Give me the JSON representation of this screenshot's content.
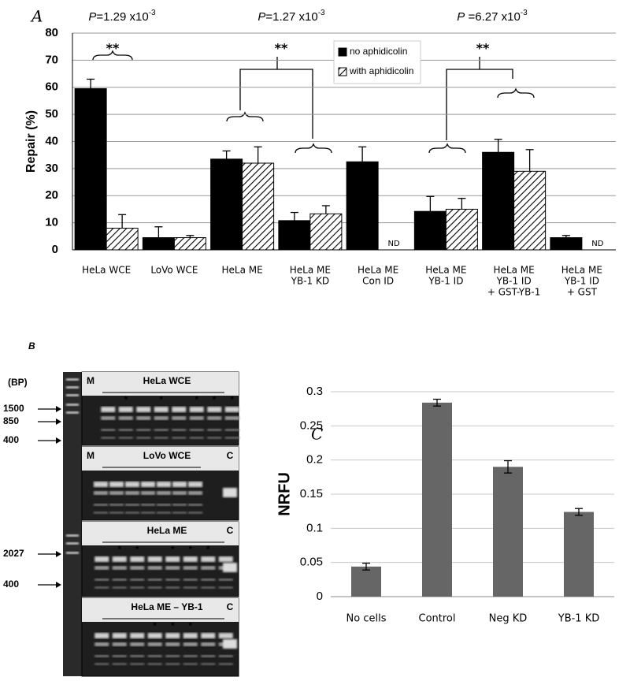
{
  "chart_data": [
    {
      "type": "bar",
      "panel_label": "A",
      "y_label": "Repair (%)",
      "categories": [
        [
          "HeLa WCE"
        ],
        [
          "LoVo WCE"
        ],
        [
          "HeLa ME"
        ],
        [
          "HeLa ME",
          "YB-1 KD"
        ],
        [
          "HeLa ME",
          "Con ID"
        ],
        [
          "HeLa ME",
          "YB-1 ID"
        ],
        [
          "HeLa ME",
          "YB-1 ID",
          "+ GST-YB-1"
        ],
        [
          "HeLa ME",
          "YB-1 ID",
          "+ GST"
        ]
      ],
      "series": [
        {
          "name": "no aphidicolin",
          "color": "#000000",
          "values": [
            59.5,
            4.5,
            33.5,
            10.8,
            32.5,
            14.2,
            36,
            4.5
          ],
          "errors": [
            3.5,
            4,
            3,
            3,
            5.5,
            5.5,
            4.8,
            0.8
          ]
        },
        {
          "name": "with aphidicolin",
          "color": "#ffffff",
          "pattern": "hatch",
          "values": [
            8,
            4.5,
            32,
            13.3,
            null,
            15,
            29,
            null
          ],
          "errors": [
            5,
            0.8,
            6,
            3,
            null,
            4,
            8,
            null
          ],
          "value_labels": [
            null,
            null,
            null,
            null,
            "ND",
            null,
            null,
            "ND"
          ]
        }
      ],
      "ylim": [
        0,
        80
      ],
      "yticks": [
        0,
        10,
        20,
        30,
        40,
        50,
        60,
        70,
        80
      ],
      "grid": true,
      "legend": "top",
      "annotations": [
        {
          "italic": "P",
          "text": "=1.29 x10",
          "sup": "-3"
        },
        {
          "italic": "P",
          "text": "=1.27 x10",
          "sup": "-3"
        },
        {
          "italic": "P",
          "text": " =6.27 x10",
          "sup": "-3"
        }
      ],
      "significance": [
        "**",
        "**",
        "**"
      ]
    },
    {
      "type": "bar",
      "panel_label": "C",
      "y_label": "NRFU",
      "categories": [
        "No cells",
        "Control",
        "Neg KD",
        "YB-1 KD"
      ],
      "values": [
        0.044,
        0.284,
        0.19,
        0.124
      ],
      "errors": [
        0.005,
        0.005,
        0.009,
        0.005
      ],
      "color": "#666666",
      "ylim": [
        0,
        0.3
      ],
      "yticks": [
        0,
        0.05,
        0.1,
        0.15,
        0.2,
        0.25,
        0.3
      ],
      "grid": true
    }
  ],
  "gel": {
    "panel_label": "B",
    "unit": "(BP)",
    "panels": [
      {
        "title": "HeLa WCE",
        "marker": "M",
        "control": null,
        "lanes": [
          null,
          "*",
          null,
          "*",
          null,
          "*",
          "*",
          "*"
        ],
        "sizes": [
          "1500",
          "850",
          "400"
        ]
      },
      {
        "title": "LoVo WCE",
        "marker": "M",
        "control": "C",
        "lanes": [
          null,
          null,
          null,
          null,
          null,
          null,
          null
        ],
        "sizes": []
      },
      {
        "title": "HeLa ME",
        "marker": null,
        "control": "C",
        "lanes": [
          null,
          "*",
          "*",
          null,
          "*",
          "*",
          "*",
          null
        ],
        "sizes": [
          "2027",
          "400"
        ]
      },
      {
        "title": "HeLa ME – YB-1",
        "marker": null,
        "control": "C",
        "lanes": [
          null,
          null,
          null,
          "*",
          "*",
          "*",
          null,
          null
        ],
        "sizes": []
      }
    ]
  }
}
